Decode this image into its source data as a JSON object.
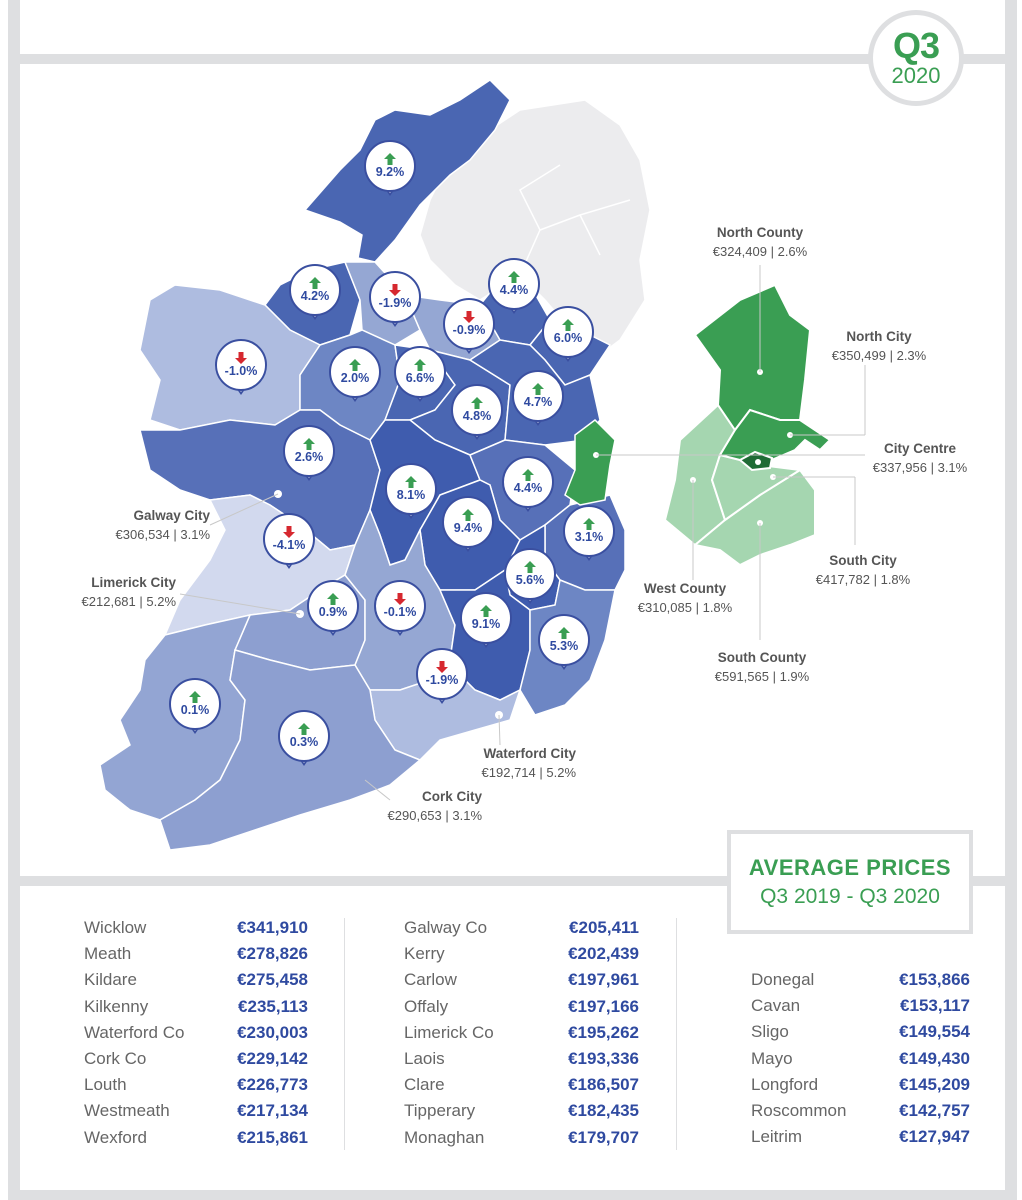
{
  "quarter_badge": {
    "quarter": "Q3",
    "year": "2020"
  },
  "colors": {
    "accent_green": "#3a9e53",
    "brand_blue": "#2f4aa0",
    "up_arrow": "#3a9e53",
    "down_arrow": "#d6282f",
    "map_light_grey": "#ececee"
  },
  "map_changes": [
    {
      "id": "donegal",
      "value": "9.2%",
      "direction": "up"
    },
    {
      "id": "sligo",
      "value": "4.2%",
      "direction": "up"
    },
    {
      "id": "leitrim",
      "value": "-1.9%",
      "direction": "down"
    },
    {
      "id": "cavan",
      "value": "-0.9%",
      "direction": "down"
    },
    {
      "id": "monaghan",
      "value": "4.4%",
      "direction": "up"
    },
    {
      "id": "louth",
      "value": "6.0%",
      "direction": "up"
    },
    {
      "id": "mayo",
      "value": "-1.0%",
      "direction": "down"
    },
    {
      "id": "roscommon",
      "value": "2.0%",
      "direction": "up"
    },
    {
      "id": "longford",
      "value": "6.6%",
      "direction": "up"
    },
    {
      "id": "westmeath",
      "value": "4.8%",
      "direction": "up"
    },
    {
      "id": "meath",
      "value": "4.7%",
      "direction": "up"
    },
    {
      "id": "galway",
      "value": "2.6%",
      "direction": "up"
    },
    {
      "id": "offaly",
      "value": "8.1%",
      "direction": "up"
    },
    {
      "id": "kildare",
      "value": "4.4%",
      "direction": "up"
    },
    {
      "id": "clare",
      "value": "-4.1%",
      "direction": "down"
    },
    {
      "id": "laois",
      "value": "9.4%",
      "direction": "up"
    },
    {
      "id": "wicklow",
      "value": "3.1%",
      "direction": "up"
    },
    {
      "id": "carlow",
      "value": "5.6%",
      "direction": "up"
    },
    {
      "id": "limerick",
      "value": "0.9%",
      "direction": "up"
    },
    {
      "id": "tipperary",
      "value": "-0.1%",
      "direction": "down"
    },
    {
      "id": "kilkenny",
      "value": "9.1%",
      "direction": "up"
    },
    {
      "id": "wexford",
      "value": "5.3%",
      "direction": "up"
    },
    {
      "id": "waterford",
      "value": "-1.9%",
      "direction": "down"
    },
    {
      "id": "kerry",
      "value": "0.1%",
      "direction": "up"
    },
    {
      "id": "cork",
      "value": "0.3%",
      "direction": "up"
    }
  ],
  "city_labels": {
    "galway_city": {
      "name": "Galway City",
      "stats": "€306,534 | 3.1%"
    },
    "limerick_city": {
      "name": "Limerick City",
      "stats": "€212,681  |  5.2%"
    },
    "waterford_city": {
      "name": "Waterford City",
      "stats": "€192,714  |  5.2%"
    },
    "cork_city": {
      "name": "Cork City",
      "stats": "€290,653  |  3.1%"
    }
  },
  "dublin_labels": {
    "north_county": {
      "name": "North County",
      "stats": "€324,409 | 2.6%"
    },
    "north_city": {
      "name": "North City",
      "stats": "€350,499 | 2.3%"
    },
    "city_centre": {
      "name": "City Centre",
      "stats": "€337,956 | 3.1%"
    },
    "south_city": {
      "name": "South City",
      "stats": "€417,782 | 1.8%"
    },
    "west_county": {
      "name": "West County",
      "stats": "€310,085 | 1.8%"
    },
    "south_county": {
      "name": "South County",
      "stats": "€591,565 | 1.9%"
    }
  },
  "average_prices_box": {
    "title": "AVERAGE PRICES",
    "period": "Q3 2019 - Q3 2020"
  },
  "price_table": {
    "column_1": [
      {
        "county": "Wicklow",
        "price": "€341,910"
      },
      {
        "county": "Meath",
        "price": "€278,826"
      },
      {
        "county": "Kildare",
        "price": "€275,458"
      },
      {
        "county": "Kilkenny",
        "price": "€235,113"
      },
      {
        "county": "Waterford Co",
        "price": "€230,003"
      },
      {
        "county": "Cork Co",
        "price": "€229,142"
      },
      {
        "county": "Louth",
        "price": "€226,773"
      },
      {
        "county": "Westmeath",
        "price": "€217,134"
      },
      {
        "county": "Wexford",
        "price": "€215,861"
      }
    ],
    "column_2": [
      {
        "county": "Galway Co",
        "price": "€205,411"
      },
      {
        "county": "Kerry",
        "price": "€202,439"
      },
      {
        "county": "Carlow",
        "price": "€197,961"
      },
      {
        "county": "Offaly",
        "price": "€197,166"
      },
      {
        "county": "Limerick Co",
        "price": "€195,262"
      },
      {
        "county": "Laois",
        "price": "€193,336"
      },
      {
        "county": "Clare",
        "price": "€186,507"
      },
      {
        "county": "Tipperary",
        "price": "€182,435"
      },
      {
        "county": "Monaghan",
        "price": "€179,707"
      }
    ],
    "column_3": [
      {
        "county": "Donegal",
        "price": "€153,866"
      },
      {
        "county": "Cavan",
        "price": "€153,117"
      },
      {
        "county": "Sligo",
        "price": "€149,554"
      },
      {
        "county": "Mayo",
        "price": "€149,430"
      },
      {
        "county": "Longford",
        "price": "€145,209"
      },
      {
        "county": "Roscommon",
        "price": "€142,757"
      },
      {
        "county": "Leitrim",
        "price": "€127,947"
      }
    ]
  }
}
